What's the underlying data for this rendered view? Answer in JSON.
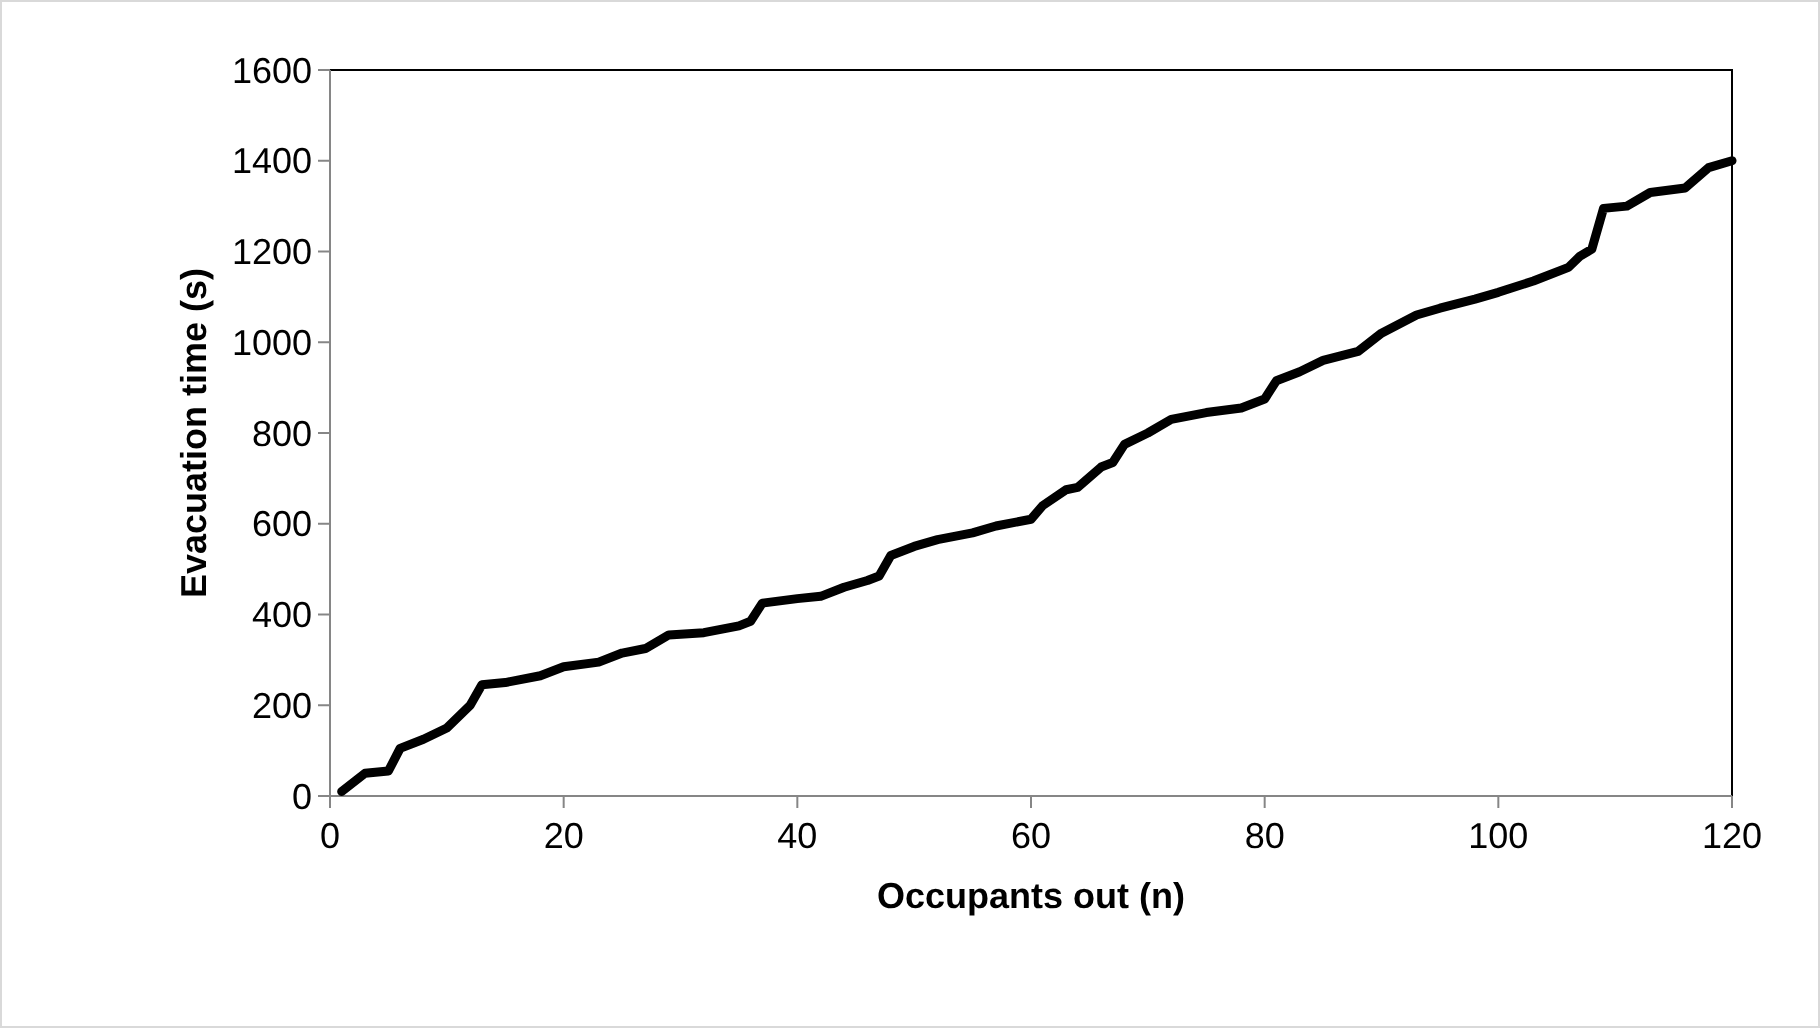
{
  "chart_data": {
    "type": "line",
    "xlabel": "Occupants out (n)",
    "ylabel": "Evacuation time (s)",
    "xlim": [
      0,
      120
    ],
    "xticks": [
      0,
      20,
      40,
      60,
      80,
      100,
      120
    ],
    "ylim": [
      0,
      1600
    ],
    "yticks": [
      0,
      200,
      400,
      600,
      800,
      1000,
      1200,
      1400,
      1600
    ],
    "marker": "none",
    "line_style": "solid",
    "x": [
      1,
      3,
      5,
      6,
      8,
      10,
      12,
      13,
      15,
      18,
      20,
      23,
      25,
      27,
      29,
      32,
      35,
      36,
      37,
      40,
      42,
      44,
      46,
      47,
      48,
      50,
      52,
      55,
      57,
      60,
      61,
      63,
      64,
      66,
      67,
      68,
      70,
      72,
      75,
      78,
      80,
      81,
      83,
      85,
      88,
      90,
      93,
      95,
      98,
      100,
      103,
      106,
      107,
      108,
      109,
      111,
      113,
      116,
      118,
      120
    ],
    "series": [
      {
        "color": "#000000",
        "values": [
          10,
          50,
          55,
          105,
          125,
          150,
          200,
          245,
          250,
          265,
          285,
          295,
          315,
          325,
          355,
          360,
          375,
          385,
          425,
          435,
          440,
          460,
          475,
          485,
          530,
          550,
          565,
          580,
          595,
          610,
          640,
          675,
          680,
          725,
          735,
          775,
          800,
          830,
          845,
          855,
          875,
          915,
          935,
          960,
          980,
          1020,
          1060,
          1075,
          1095,
          1110,
          1135,
          1165,
          1190,
          1205,
          1295,
          1300,
          1330,
          1340,
          1385,
          1400
        ]
      }
    ]
  }
}
